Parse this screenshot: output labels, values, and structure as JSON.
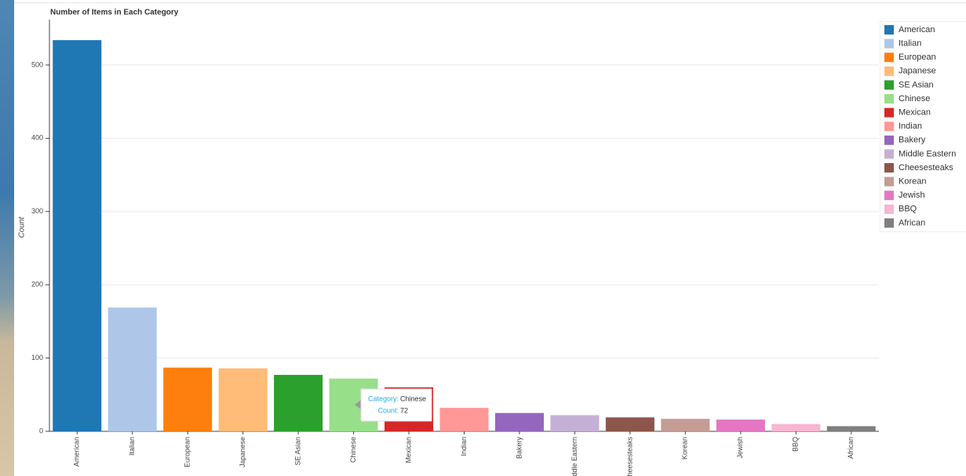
{
  "chart_data": {
    "type": "bar",
    "title": "Number of Items in Each Category",
    "y_label": "Count",
    "categories": [
      "American",
      "Italian",
      "European",
      "Japanese",
      "SE Asian",
      "Chinese",
      "Mexican",
      "Indian",
      "Bakery",
      "Middle Eastern",
      "Cheesesteaks",
      "Korean",
      "Jewish",
      "BBQ",
      "African"
    ],
    "values": [
      534,
      169,
      87,
      86,
      77,
      72,
      60,
      32,
      25,
      22,
      19,
      17,
      16,
      10,
      7
    ],
    "colors": [
      "#1f77b4",
      "#aec7e8",
      "#ff7f0e",
      "#ffbb78",
      "#2ca02c",
      "#98df8a",
      "#d62728",
      "#ff9896",
      "#9467bd",
      "#c5b0d5",
      "#8c564b",
      "#c49c94",
      "#e377c2",
      "#f7b6d2",
      "#7f7f7f"
    ],
    "ylim": [
      0,
      562
    ],
    "yticks": [
      0,
      100,
      200,
      300,
      400,
      500
    ],
    "grid": true,
    "legend": "right",
    "tooltip": {
      "labels": [
        "Category:",
        "Count:"
      ]
    }
  }
}
